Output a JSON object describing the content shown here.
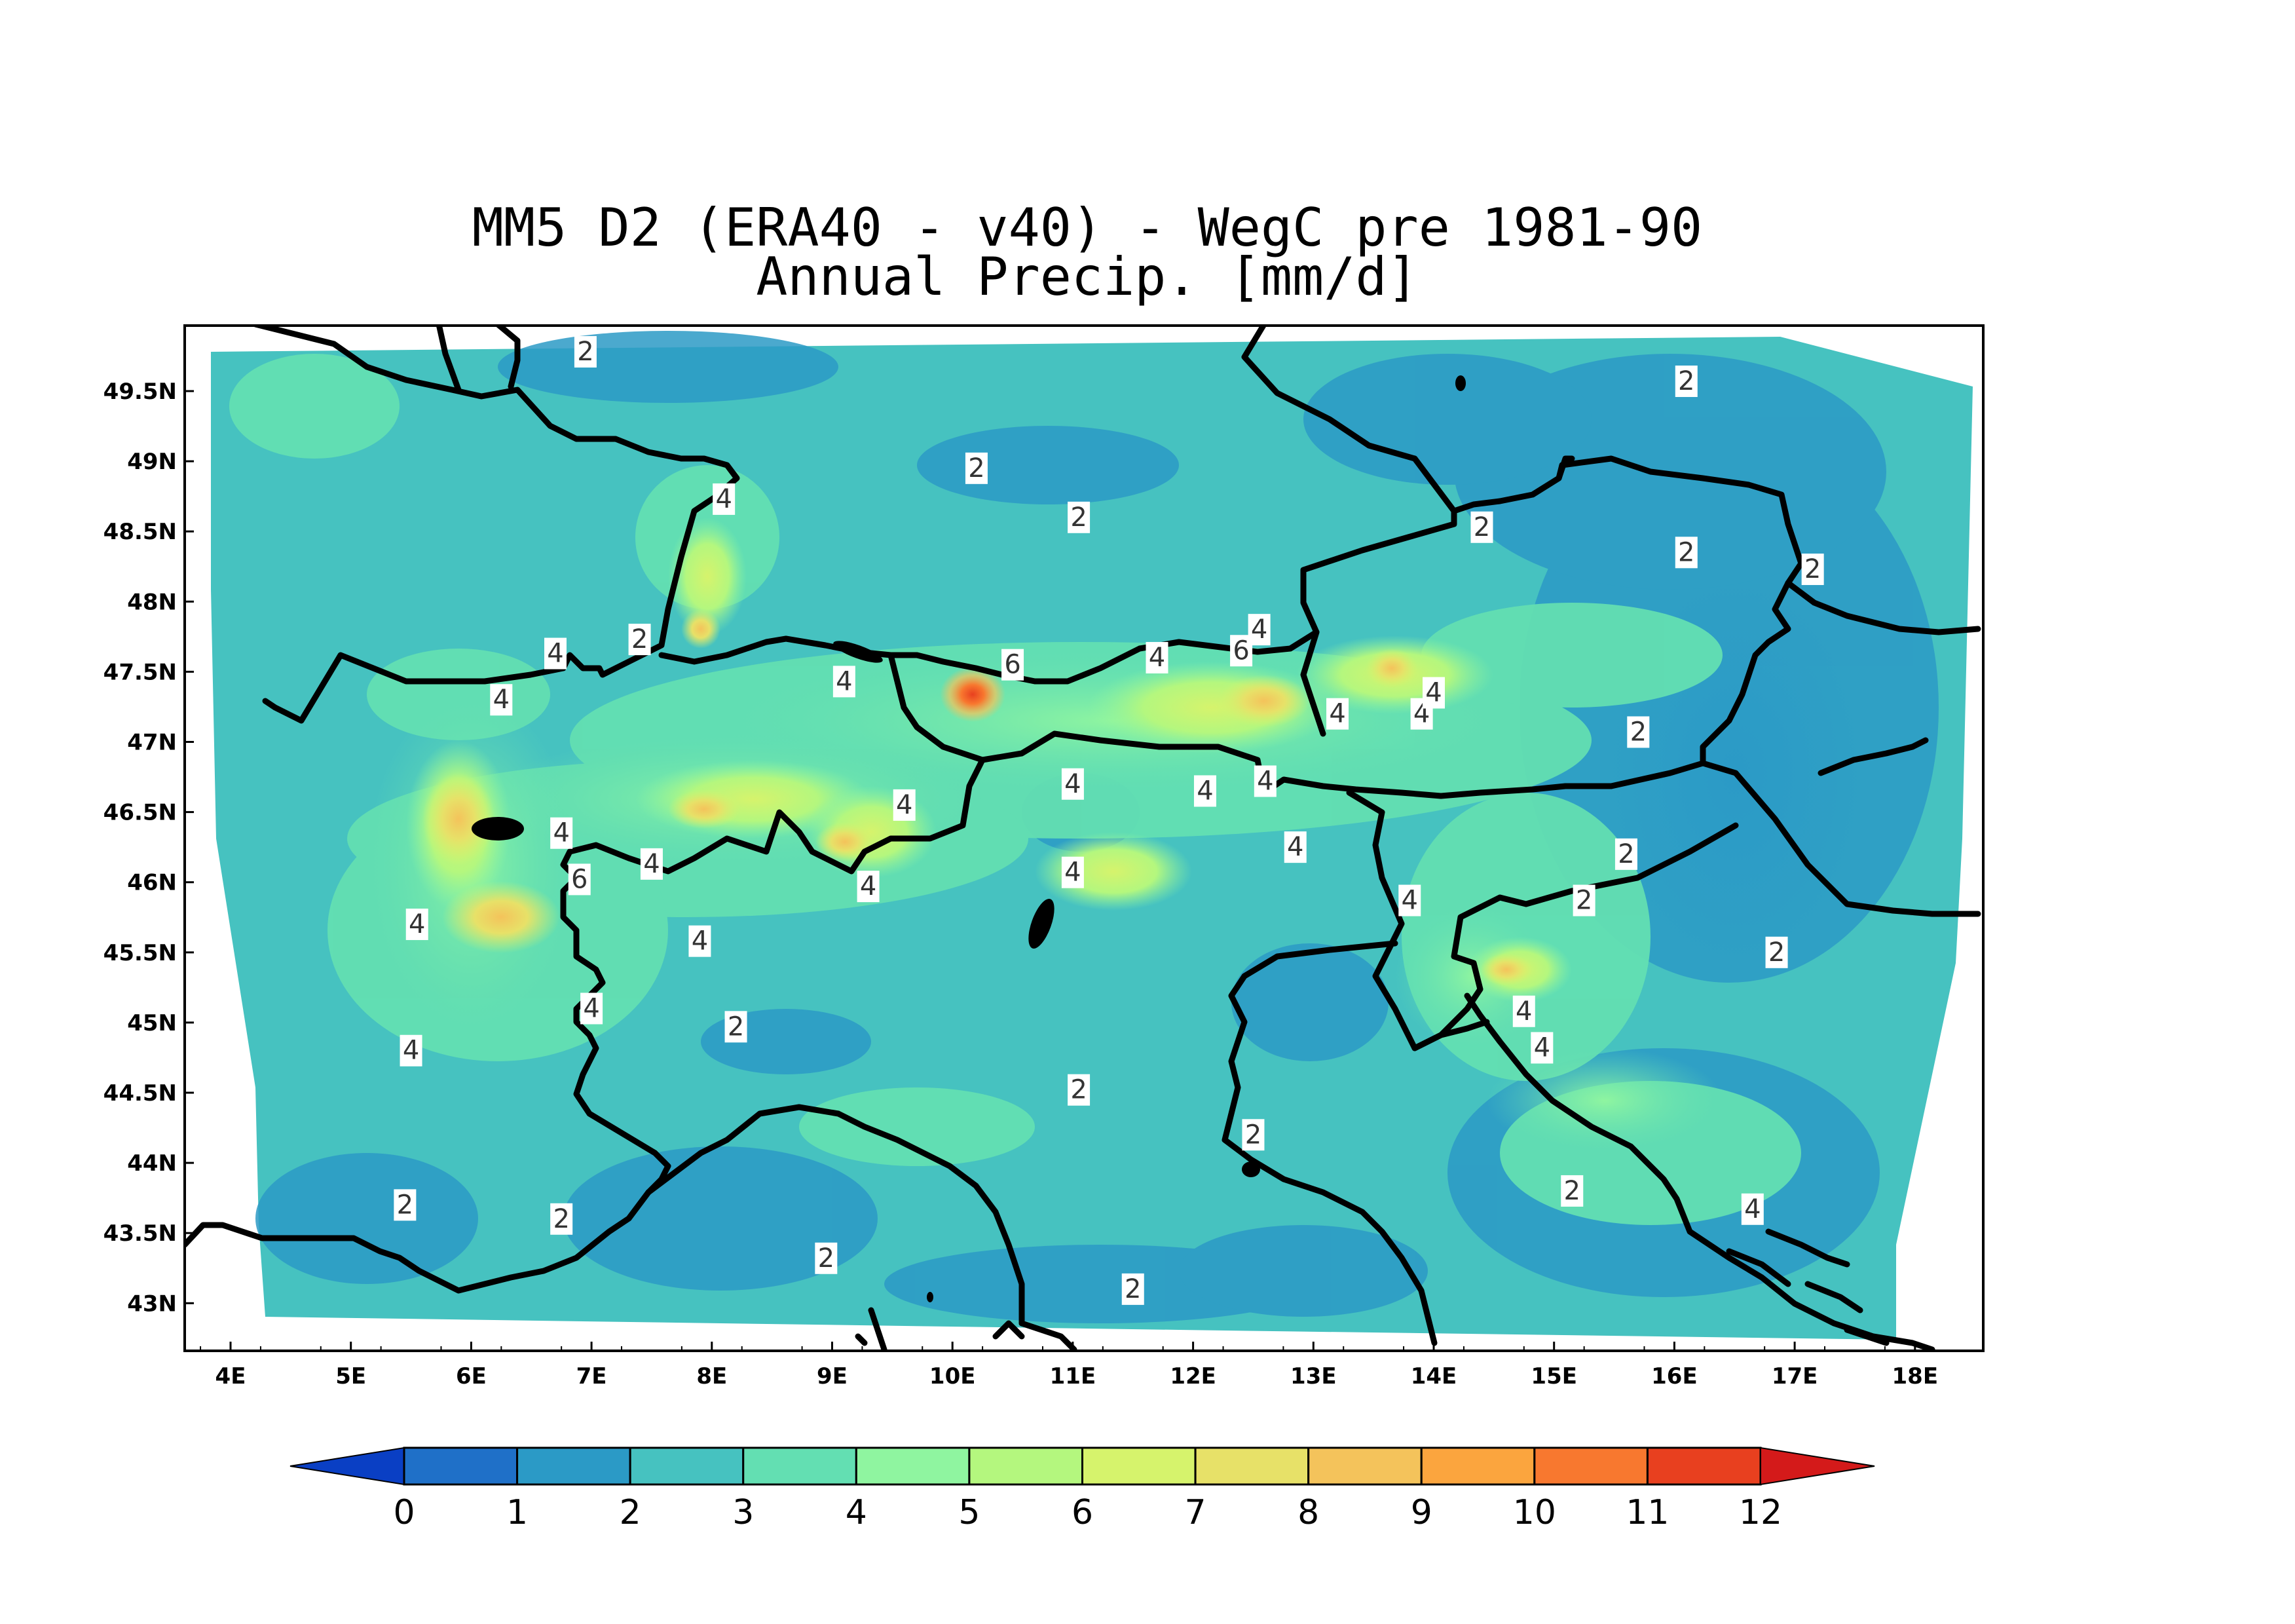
{
  "title_line1": "MM5 D2 (ERA40 - v40) - WegC pre 1981-90",
  "title_line2": "Annual Precip. [mm/d]",
  "lon_ticks": [
    "4E",
    "5E",
    "6E",
    "7E",
    "8E",
    "9E",
    "10E",
    "11E",
    "12E",
    "13E",
    "14E",
    "15E",
    "16E",
    "17E",
    "18E"
  ],
  "lat_ticks": [
    "49.5N",
    "49N",
    "48.5N",
    "48N",
    "47.5N",
    "47N",
    "46.5N",
    "46N",
    "45.5N",
    "45N",
    "44.5N",
    "44N",
    "43.5N",
    "43N"
  ],
  "colorbar": {
    "labels": [
      "0",
      "1",
      "2",
      "3",
      "4",
      "5",
      "6",
      "7",
      "8",
      "9",
      "10",
      "11",
      "12"
    ],
    "colors": [
      "#1f70c8",
      "#2b9ac6",
      "#46c2c0",
      "#63dfb2",
      "#8ff5a0",
      "#b4f77e",
      "#d6f36c",
      "#e7e168",
      "#f4c35b",
      "#fba53e",
      "#f8782f",
      "#e8401f"
    ],
    "under_color": "#0a3fc4",
    "over_color": "#d41a1a"
  },
  "contour_labels": [
    {
      "text": "2",
      "lon": 6.95,
      "lat": 49.78
    },
    {
      "text": "2",
      "lon": 16.1,
      "lat": 49.57
    },
    {
      "text": "2",
      "lon": 10.2,
      "lat": 48.95
    },
    {
      "text": "2",
      "lon": 11.05,
      "lat": 48.6
    },
    {
      "text": "2",
      "lon": 14.4,
      "lat": 48.53
    },
    {
      "text": "2",
      "lon": 16.1,
      "lat": 48.35
    },
    {
      "text": "2",
      "lon": 17.15,
      "lat": 48.23
    },
    {
      "text": "4",
      "lon": 8.1,
      "lat": 48.73
    },
    {
      "text": "2",
      "lon": 7.4,
      "lat": 47.73
    },
    {
      "text": "4",
      "lon": 6.7,
      "lat": 47.63
    },
    {
      "text": "4",
      "lon": 6.25,
      "lat": 47.3
    },
    {
      "text": "4",
      "lon": 9.1,
      "lat": 47.43
    },
    {
      "text": "6",
      "lon": 10.5,
      "lat": 47.55
    },
    {
      "text": "4",
      "lon": 11.7,
      "lat": 47.6
    },
    {
      "text": "6",
      "lon": 12.4,
      "lat": 47.65
    },
    {
      "text": "4",
      "lon": 12.55,
      "lat": 47.8
    },
    {
      "text": "4",
      "lon": 13.2,
      "lat": 47.2
    },
    {
      "text": "4",
      "lon": 13.9,
      "lat": 47.2
    },
    {
      "text": "4",
      "lon": 14.0,
      "lat": 47.35
    },
    {
      "text": "2",
      "lon": 15.7,
      "lat": 47.07
    },
    {
      "text": "4",
      "lon": 11.0,
      "lat": 46.7
    },
    {
      "text": "4",
      "lon": 12.1,
      "lat": 46.65
    },
    {
      "text": "4",
      "lon": 12.6,
      "lat": 46.72
    },
    {
      "text": "4",
      "lon": 9.6,
      "lat": 46.55
    },
    {
      "text": "4",
      "lon": 6.75,
      "lat": 46.35
    },
    {
      "text": "4",
      "lon": 7.5,
      "lat": 46.13
    },
    {
      "text": "6",
      "lon": 6.9,
      "lat": 46.02
    },
    {
      "text": "4",
      "lon": 9.3,
      "lat": 45.97
    },
    {
      "text": "4",
      "lon": 11.0,
      "lat": 46.07
    },
    {
      "text": "4",
      "lon": 12.85,
      "lat": 46.25
    },
    {
      "text": "2",
      "lon": 15.6,
      "lat": 46.2
    },
    {
      "text": "2",
      "lon": 15.25,
      "lat": 45.87
    },
    {
      "text": "4",
      "lon": 13.8,
      "lat": 45.87
    },
    {
      "text": "4",
      "lon": 5.55,
      "lat": 45.7
    },
    {
      "text": "4",
      "lon": 7.9,
      "lat": 45.58
    },
    {
      "text": "2",
      "lon": 16.85,
      "lat": 45.5
    },
    {
      "text": "4",
      "lon": 7.0,
      "lat": 45.1
    },
    {
      "text": "4",
      "lon": 14.75,
      "lat": 45.08
    },
    {
      "text": "2",
      "lon": 8.2,
      "lat": 44.97
    },
    {
      "text": "4",
      "lon": 14.9,
      "lat": 44.82
    },
    {
      "text": "4",
      "lon": 5.5,
      "lat": 44.8
    },
    {
      "text": "2",
      "lon": 11.05,
      "lat": 44.52
    },
    {
      "text": "2",
      "lon": 12.5,
      "lat": 44.2
    },
    {
      "text": "2",
      "lon": 15.15,
      "lat": 43.8
    },
    {
      "text": "4",
      "lon": 16.65,
      "lat": 43.67
    },
    {
      "text": "2",
      "lon": 5.45,
      "lat": 43.7
    },
    {
      "text": "2",
      "lon": 6.75,
      "lat": 43.6
    },
    {
      "text": "2",
      "lon": 8.95,
      "lat": 43.32
    },
    {
      "text": "2",
      "lon": 11.5,
      "lat": 43.1
    }
  ]
}
